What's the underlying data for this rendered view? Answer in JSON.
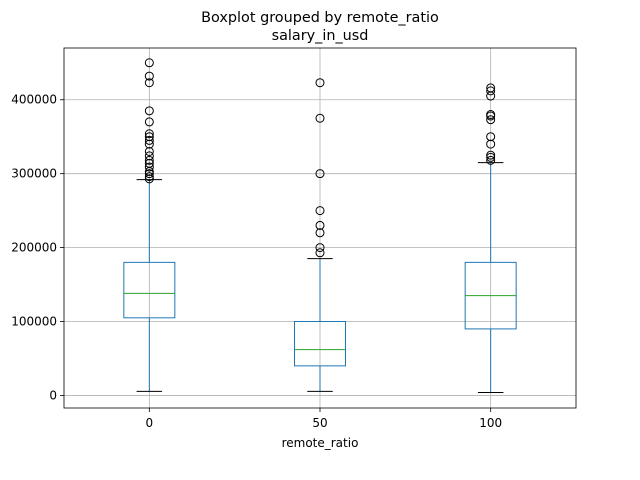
{
  "chart_data": {
    "type": "box",
    "title": "Boxplot grouped by remote_ratio",
    "subtitle": "salary_in_usd",
    "xlabel": "remote_ratio",
    "ylabel": "",
    "categories": [
      "0",
      "50",
      "100"
    ],
    "ylim": [
      -17000,
      470000
    ],
    "yticks": [
      0,
      100000,
      200000,
      300000,
      400000
    ],
    "ytick_labels": [
      "0",
      "100000",
      "200000",
      "300000",
      "400000"
    ],
    "grid": true,
    "boxes": [
      {
        "category": "0",
        "whisker_low": 5500,
        "q1": 105000,
        "median": 138000,
        "q3": 180000,
        "whisker_high": 292000,
        "outliers": [
          293000,
          296000,
          300000,
          303000,
          309000,
          314000,
          318000,
          324000,
          330000,
          340000,
          345000,
          350000,
          354000,
          370000,
          385000,
          423000,
          432000,
          450000
        ]
      },
      {
        "category": "50",
        "whisker_low": 5500,
        "q1": 40000,
        "median": 62000,
        "q3": 100000,
        "whisker_high": 185000,
        "outliers": [
          193000,
          200000,
          220000,
          230000,
          250000,
          300000,
          375000,
          423000
        ]
      },
      {
        "category": "100",
        "whisker_low": 4000,
        "q1": 90000,
        "median": 135000,
        "q3": 180000,
        "whisker_high": 315000,
        "outliers": [
          318000,
          322000,
          325000,
          340000,
          350000,
          373000,
          378000,
          380000,
          405000,
          412000,
          416000
        ]
      }
    ],
    "colors": {
      "box": "#1f77b4",
      "median": "#2ca02c",
      "outlier": "#000000",
      "cap": "#000000",
      "grid": "#b0b0b0"
    }
  }
}
